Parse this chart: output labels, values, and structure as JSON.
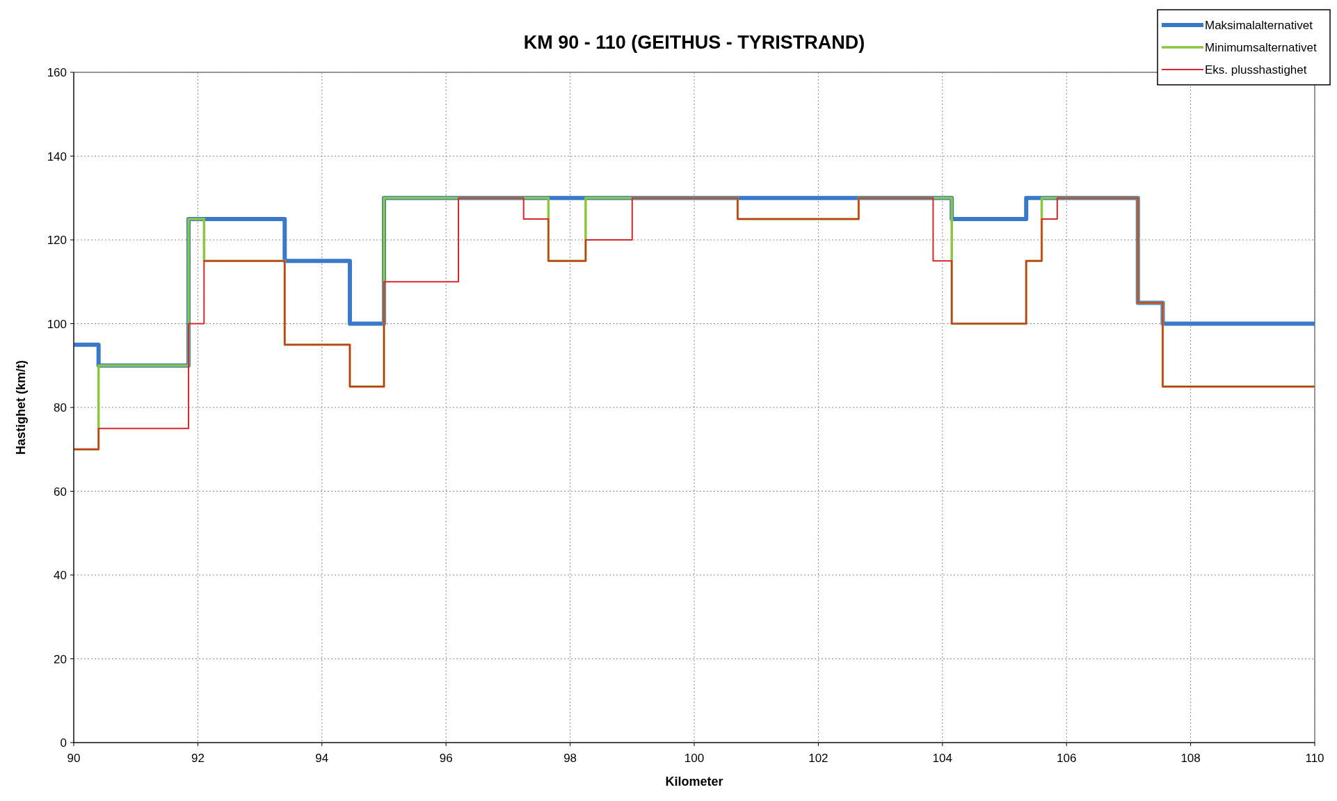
{
  "chart_data": {
    "type": "step",
    "title": "KM 90 - 110 (GEITHUS - TYRISTRAND)",
    "xlabel": "Kilometer",
    "ylabel": "Hastighet (km/t)",
    "xlim": [
      90,
      110
    ],
    "xticks": [
      90,
      92,
      94,
      96,
      98,
      100,
      102,
      104,
      106,
      108,
      110
    ],
    "ylim": [
      0,
      160
    ],
    "yticks": [
      0,
      20,
      40,
      60,
      80,
      100,
      120,
      140,
      160
    ],
    "grid": true,
    "legend": "top right",
    "line_style": "solid",
    "marker": "none",
    "series": [
      {
        "name": "Maksimalalternativet",
        "color": "#3a78c8",
        "x": [
          90,
          90.4,
          91.85,
          93.4,
          94.45,
          95.0,
          104.15,
          105.35,
          107.15,
          107.55,
          110
        ],
        "values": [
          95,
          90,
          125,
          115,
          100,
          130,
          125,
          130,
          105,
          100,
          100
        ]
      },
      {
        "name": "Minimumsalternativet",
        "color": "#8cc63f",
        "x": [
          90,
          90.4,
          91.85,
          92.1,
          93.4,
          94.45,
          95.0,
          97.65,
          98.25,
          100.7,
          102.65,
          104.15,
          105.35,
          105.6,
          107.15,
          107.55,
          110
        ],
        "values": [
          70,
          90,
          125,
          115,
          95,
          85,
          130,
          115,
          130,
          125,
          130,
          100,
          115,
          130,
          105,
          85,
          85
        ]
      },
      {
        "name": "Eks. plusshastighet",
        "color": "#d9262b",
        "x": [
          90,
          90.4,
          91.85,
          92.1,
          93.4,
          94.45,
          95.0,
          96.2,
          97.25,
          97.65,
          98.25,
          99.0,
          100.7,
          102.65,
          103.85,
          104.15,
          105.35,
          105.6,
          105.85,
          107.15,
          107.55,
          110
        ],
        "values": [
          70,
          75,
          100,
          115,
          95,
          85,
          110,
          130,
          125,
          115,
          120,
          130,
          125,
          130,
          115,
          100,
          115,
          125,
          130,
          105,
          85,
          85
        ]
      }
    ]
  }
}
